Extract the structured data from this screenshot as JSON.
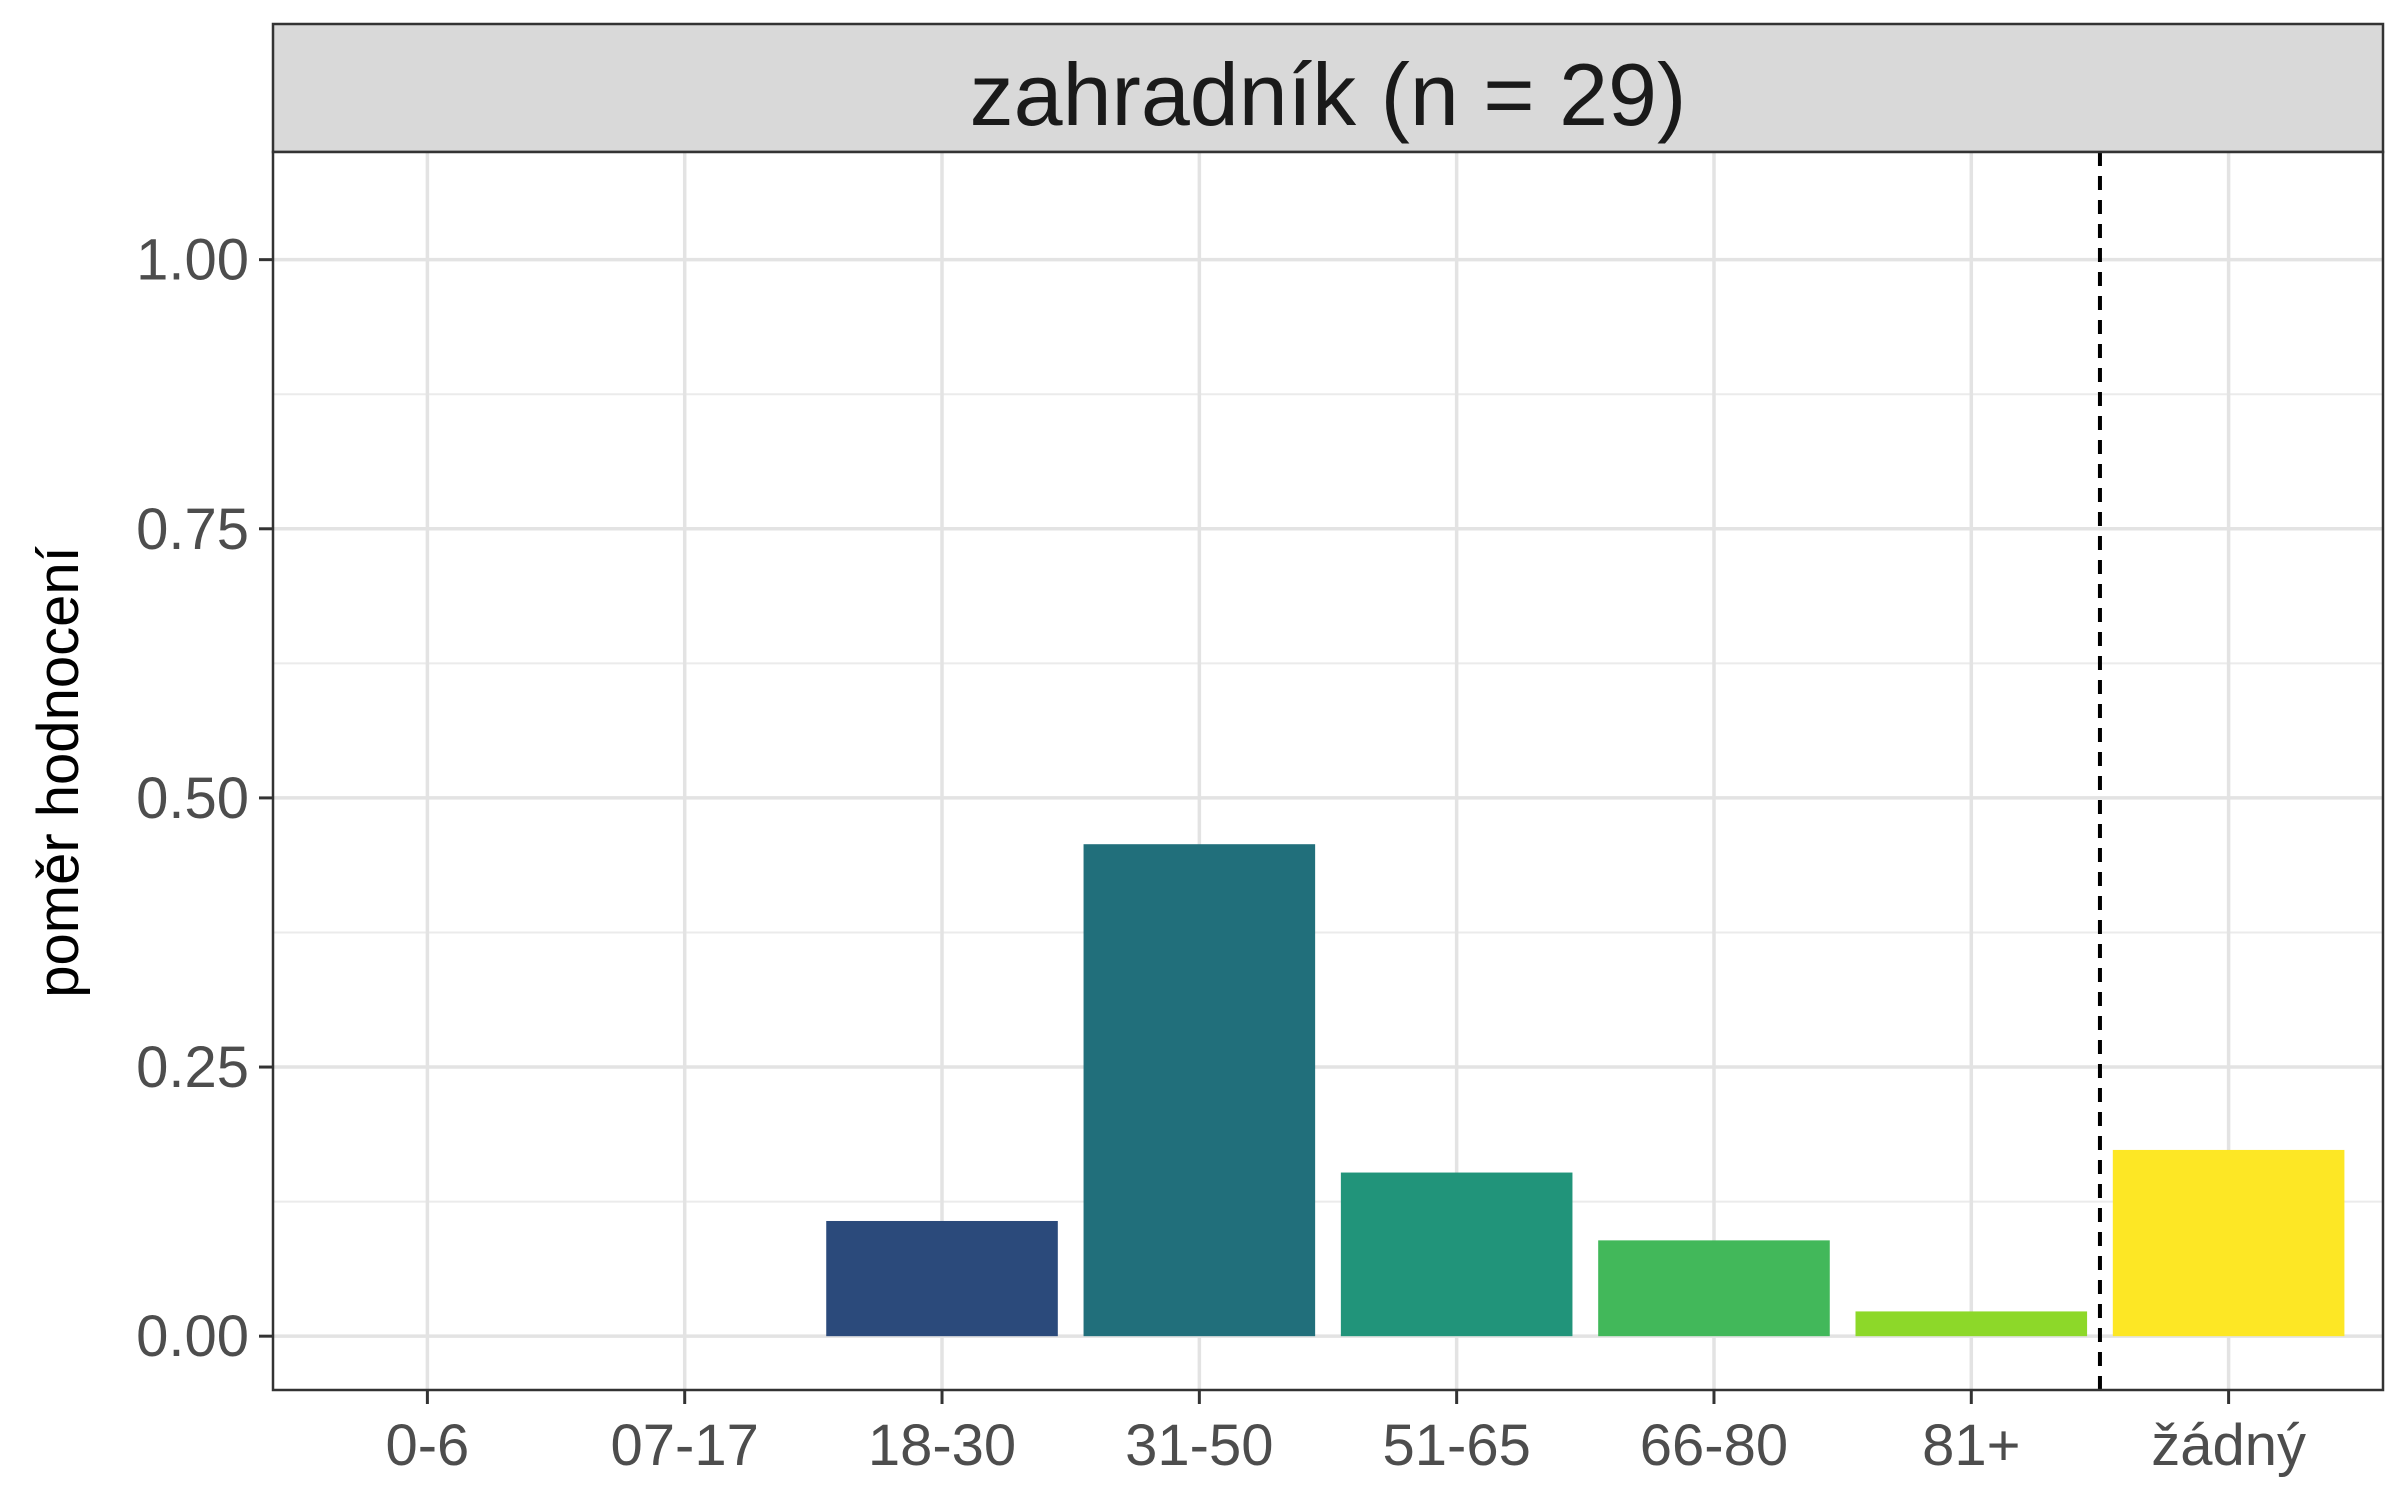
{
  "chart_data": {
    "type": "bar",
    "title": "zahradník (n = 29)",
    "xlabel": "",
    "ylabel": "poměr hodnocení",
    "categories": [
      "0-6",
      "07-17",
      "18-30",
      "31-50",
      "51-65",
      "66-80",
      "81+",
      "žádný"
    ],
    "values": [
      0,
      0,
      0.107,
      0.457,
      0.152,
      0.089,
      0.023,
      0.173
    ],
    "colors": [
      "#440154",
      "#46337E",
      "#2B4A7B",
      "#216F7B",
      "#21947A",
      "#42B85A",
      "#8DD829",
      "#FDE725"
    ],
    "ylim": [
      -0.05,
      1.1
    ],
    "yticks": [
      "0.00",
      "0.25",
      "0.50",
      "0.75",
      "1.00"
    ],
    "grid": true,
    "legend": "none",
    "reference_line": {
      "style": "dashed",
      "between": [
        "81+",
        "žádný"
      ]
    }
  }
}
